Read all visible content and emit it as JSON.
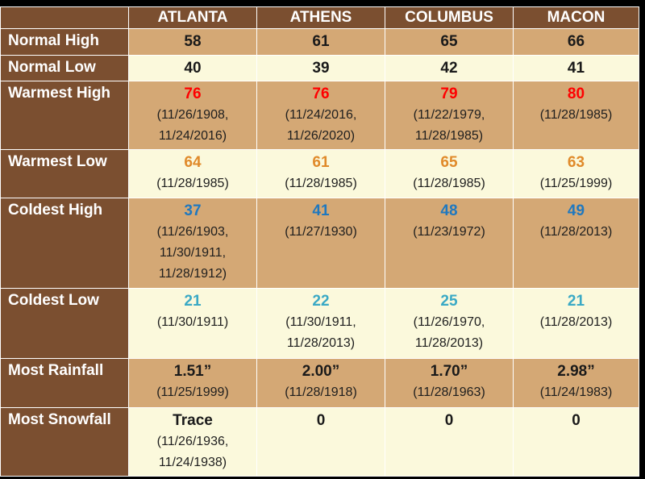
{
  "header": {
    "cities": [
      "ATLANTA",
      "ATHENS",
      "COLUMBUS",
      "MACON"
    ]
  },
  "colors": {
    "header_bg": "#7b4f30",
    "tan": "#d4a875",
    "cream": "#fbf9dc",
    "warm": "#ff0000",
    "warm_low": "#e08a2a",
    "cold_high": "#1f78bf",
    "cold_low": "#3aa9c5"
  },
  "rows": [
    {
      "label": "Normal High",
      "cells": [
        {
          "value": "58",
          "dates": ""
        },
        {
          "value": "61",
          "dates": ""
        },
        {
          "value": "65",
          "dates": ""
        },
        {
          "value": "66",
          "dates": ""
        }
      ]
    },
    {
      "label": "Normal Low",
      "cells": [
        {
          "value": "40",
          "dates": ""
        },
        {
          "value": "39",
          "dates": ""
        },
        {
          "value": "42",
          "dates": ""
        },
        {
          "value": "41",
          "dates": ""
        }
      ]
    },
    {
      "label": "Warmest High",
      "cells": [
        {
          "value": "76",
          "dates": "(11/26/1908,\n11/24/2016)"
        },
        {
          "value": "76",
          "dates": "(11/24/2016,\n11/26/2020)"
        },
        {
          "value": "79",
          "dates": "(11/22/1979,\n11/28/1985)"
        },
        {
          "value": "80",
          "dates": "(11/28/1985)"
        }
      ]
    },
    {
      "label": "Warmest Low",
      "cells": [
        {
          "value": "64",
          "dates": "(11/28/1985)"
        },
        {
          "value": "61",
          "dates": "(11/28/1985)"
        },
        {
          "value": "65",
          "dates": "(11/28/1985)"
        },
        {
          "value": "63",
          "dates": "(11/25/1999)"
        }
      ]
    },
    {
      "label": "Coldest High",
      "cells": [
        {
          "value": "37",
          "dates": "(11/26/1903,\n11/30/1911,\n11/28/1912)"
        },
        {
          "value": "41",
          "dates": "(11/27/1930)"
        },
        {
          "value": "48",
          "dates": "(11/23/1972)"
        },
        {
          "value": "49",
          "dates": "(11/28/2013)"
        }
      ]
    },
    {
      "label": "Coldest Low",
      "cells": [
        {
          "value": "21",
          "dates": "(11/30/1911)"
        },
        {
          "value": "22",
          "dates": "(11/30/1911,\n11/28/2013)"
        },
        {
          "value": "25",
          "dates": "(11/26/1970,\n11/28/2013)"
        },
        {
          "value": "21",
          "dates": "(11/28/2013)"
        }
      ]
    },
    {
      "label": "Most Rainfall",
      "cells": [
        {
          "value": "1.51”",
          "dates": "(11/25/1999)"
        },
        {
          "value": "2.00”",
          "dates": "(11/28/1918)"
        },
        {
          "value": "1.70”",
          "dates": "(11/28/1963)"
        },
        {
          "value": "2.98”",
          "dates": "(11/24/1983)"
        }
      ]
    },
    {
      "label": "Most Snowfall",
      "cells": [
        {
          "value": "Trace",
          "dates": "(11/26/1936,\n11/24/1938)"
        },
        {
          "value": "0",
          "dates": ""
        },
        {
          "value": "0",
          "dates": ""
        },
        {
          "value": "0",
          "dates": ""
        }
      ]
    }
  ]
}
